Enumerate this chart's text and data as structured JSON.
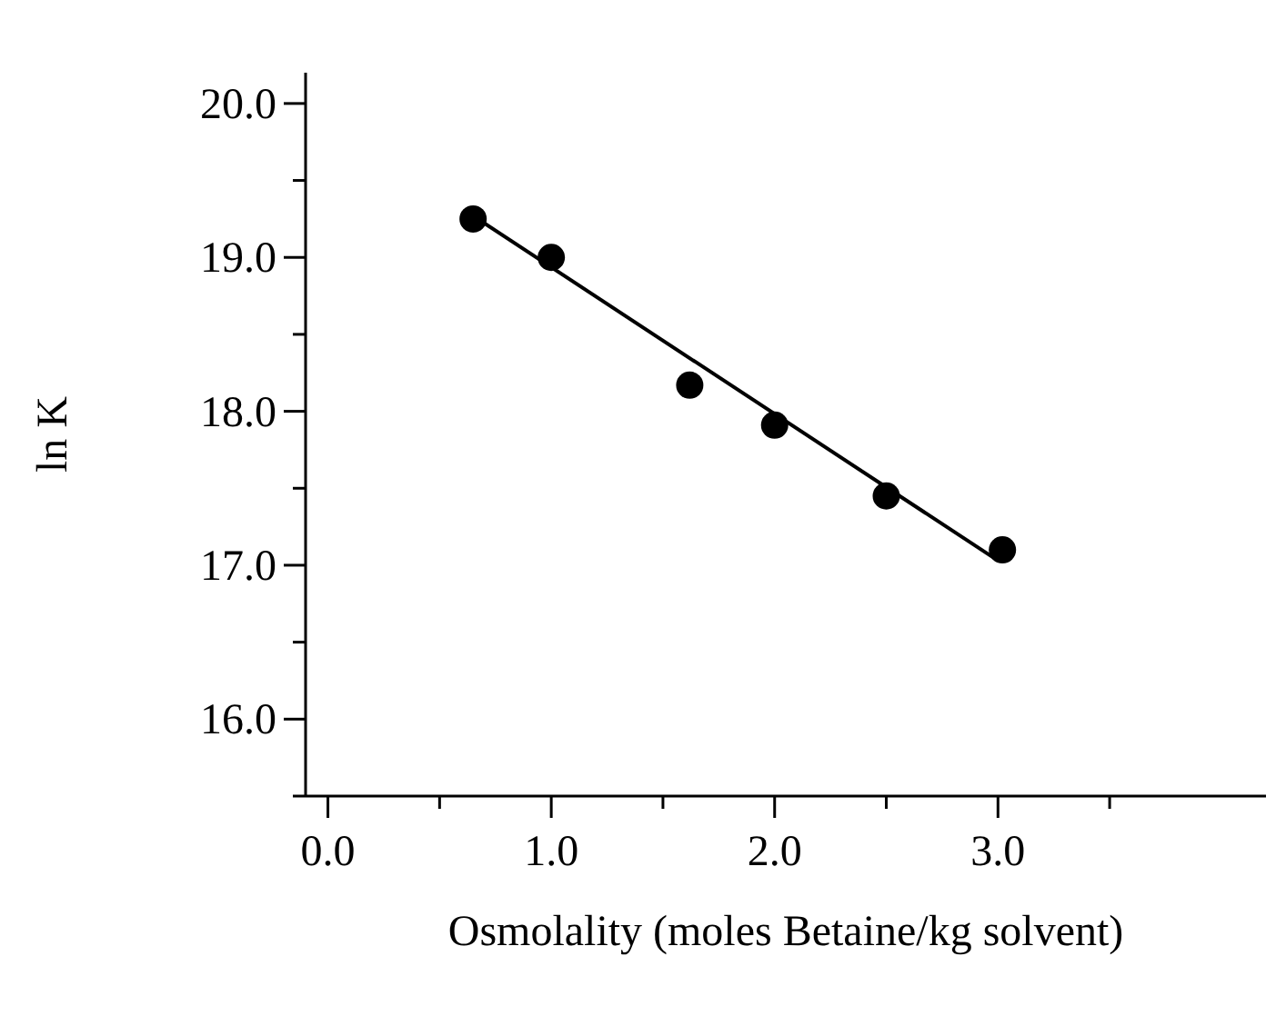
{
  "chart_data": {
    "type": "scatter",
    "xlabel": "Osmolality (moles Betaine/kg solvent)",
    "ylabel": "ln K",
    "series": [
      {
        "marker": "circle",
        "color": "#000000",
        "x": [
          0.65,
          1.0,
          1.62,
          2.0,
          2.5,
          3.02
        ],
        "values": [
          19.25,
          19.0,
          18.17,
          17.91,
          17.45,
          17.1
        ]
      },
      {
        "type": "line",
        "marker": "none",
        "color": "#000000",
        "x": [
          0.65,
          3.0
        ],
        "values": [
          19.27,
          17.03
        ]
      }
    ],
    "grid": false,
    "legend": false,
    "xlim": [
      -0.1,
      4.2
    ],
    "xticks": [
      {
        "value": 0,
        "label": "0.0"
      },
      {
        "value": 0.5,
        "label": null
      },
      {
        "value": 1,
        "label": "1.0"
      },
      {
        "value": 1.5,
        "label": null
      },
      {
        "value": 2,
        "label": "2.0"
      },
      {
        "value": 2.5,
        "label": null
      },
      {
        "value": 3,
        "label": "3.0"
      },
      {
        "value": 3.5,
        "label": null
      }
    ],
    "ylim": [
      15.5,
      20.2
    ],
    "yticks": [
      {
        "value": 15.5,
        "label": null
      },
      {
        "value": 16,
        "label": "16.0"
      },
      {
        "value": 16.5,
        "label": null
      },
      {
        "value": 17,
        "label": "17.0"
      },
      {
        "value": 17.5,
        "label": null
      },
      {
        "value": 18,
        "label": "18.0"
      },
      {
        "value": 18.5,
        "label": null
      },
      {
        "value": 19,
        "label": "19.0"
      },
      {
        "value": 19.5,
        "label": null
      },
      {
        "value": 20,
        "label": "20.0"
      }
    ]
  }
}
